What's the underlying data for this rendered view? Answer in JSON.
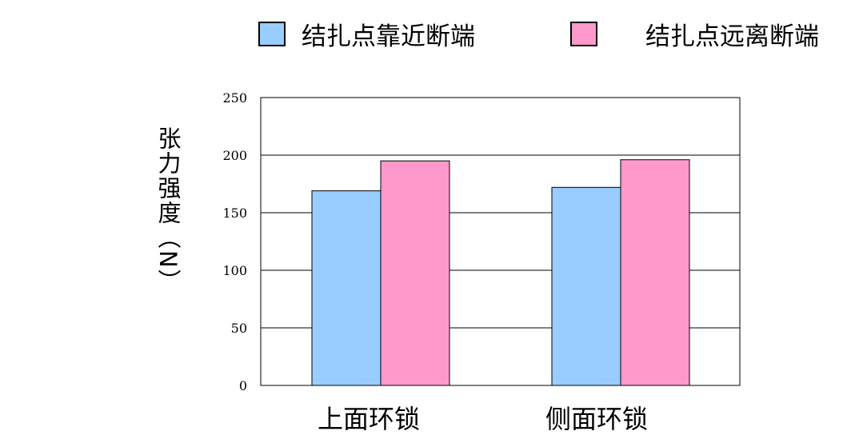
{
  "chart_data": {
    "type": "bar",
    "categories": [
      "上面环锁",
      "侧面环锁"
    ],
    "series": [
      {
        "name": "结扎点靠近断端",
        "values": [
          169,
          172
        ],
        "color": "#99ccff"
      },
      {
        "name": "结扎点远离断端",
        "values": [
          195,
          196
        ],
        "color": "#ff99cc"
      }
    ],
    "ylabel": "张力强度（N）",
    "ylim": [
      0,
      250
    ],
    "yticks": [
      0,
      50,
      100,
      150,
      200,
      250
    ],
    "grid": true,
    "legend_position": "top"
  }
}
